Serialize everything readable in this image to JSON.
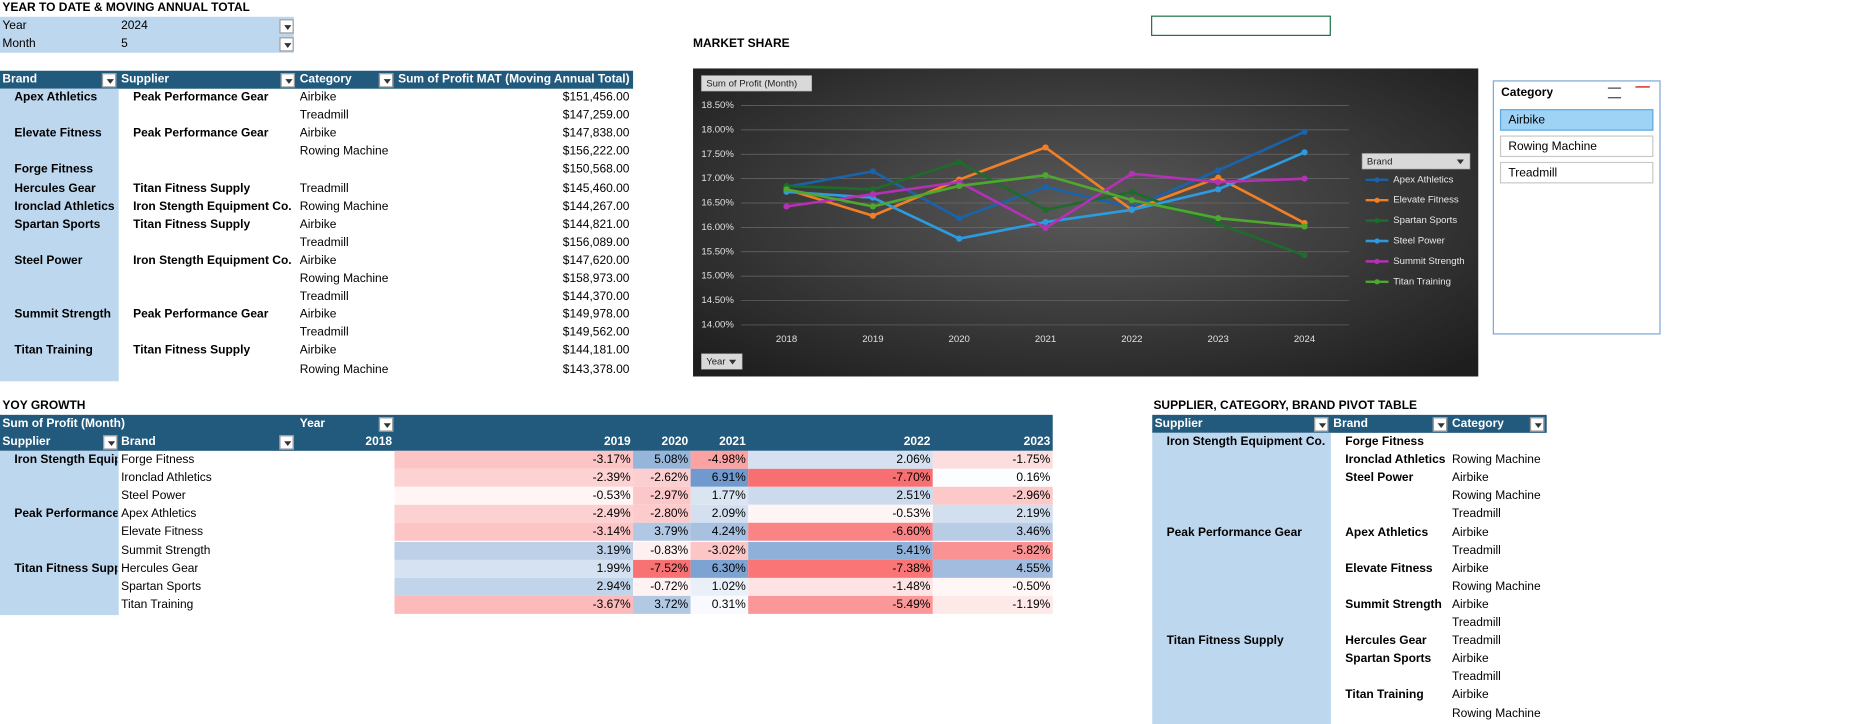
{
  "mat_table": {
    "title": "YEAR TO DATE & MOVING ANNUAL TOTAL",
    "filters": [
      {
        "label": "Year",
        "value": "2024"
      },
      {
        "label": "Month",
        "value": "5"
      }
    ],
    "headers": [
      "Brand",
      "Supplier",
      "Category",
      "Sum of Profit MAT (Moving Annual Total)"
    ],
    "rows": [
      {
        "brand": "Apex Athletics",
        "supplier": "Peak Performance Gear",
        "items": [
          {
            "category": "Airbike",
            "value": "$151,456.00"
          },
          {
            "category": "Treadmill",
            "value": "$147,259.00"
          }
        ]
      },
      {
        "brand": "Elevate Fitness",
        "supplier": "Peak Performance Gear",
        "items": [
          {
            "category": "Airbike",
            "value": "$147,838.00"
          },
          {
            "category": "Rowing Machine",
            "value": "$156,222.00"
          }
        ]
      },
      {
        "brand": "Forge Fitness",
        "items": [
          {
            "value": "$150,568.00"
          }
        ]
      },
      {
        "brand": "Hercules Gear",
        "supplier": "Titan Fitness Supply",
        "items": [
          {
            "category": "Treadmill",
            "value": "$145,460.00"
          }
        ]
      },
      {
        "brand": "Ironclad Athletics",
        "supplier": "Iron Stength Equipment Co.",
        "items": [
          {
            "category": "Rowing Machine",
            "value": "$144,267.00"
          }
        ]
      },
      {
        "brand": "Spartan Sports",
        "supplier": "Titan Fitness Supply",
        "items": [
          {
            "category": "Airbike",
            "value": "$144,821.00"
          },
          {
            "category": "Treadmill",
            "value": "$156,089.00"
          }
        ]
      },
      {
        "brand": "Steel Power",
        "supplier": "Iron Stength Equipment Co.",
        "items": [
          {
            "category": "Airbike",
            "value": "$147,620.00"
          },
          {
            "category": "Rowing Machine",
            "value": "$158,973.00"
          },
          {
            "category": "Treadmill",
            "value": "$144,370.00"
          }
        ]
      },
      {
        "brand": "Summit Strength",
        "supplier": "Peak Performance Gear",
        "items": [
          {
            "category": "Airbike",
            "value": "$149,978.00"
          },
          {
            "category": "Treadmill",
            "value": "$149,562.00"
          }
        ]
      },
      {
        "brand": "Titan Training",
        "supplier": "Titan Fitness Supply",
        "items": [
          {
            "category": "Airbike",
            "value": "$144,181.00"
          },
          {
            "category": "Rowing Machine",
            "value": "$143,378.00"
          }
        ]
      }
    ]
  },
  "chart_data": {
    "type": "line",
    "title": "MARKET SHARE",
    "value_button": "Sum of Profit (Month)",
    "axis_button": "Year",
    "legend_title": "Brand",
    "categories": [
      "2018",
      "2019",
      "2020",
      "2021",
      "2022",
      "2023",
      "2024"
    ],
    "ylim": [
      14,
      18.5
    ],
    "yticks": [
      {
        "value": 14,
        "label": "14.00%"
      },
      {
        "value": 14.5,
        "label": "14.50%"
      },
      {
        "value": 15,
        "label": "15.00%"
      },
      {
        "value": 15.5,
        "label": "15.50%"
      },
      {
        "value": 16,
        "label": "16.00%"
      },
      {
        "value": 16.5,
        "label": "16.50%"
      },
      {
        "value": 17,
        "label": "17.00%"
      },
      {
        "value": 17.5,
        "label": "17.50%"
      },
      {
        "value": 18,
        "label": "18.00%"
      },
      {
        "value": 18.5,
        "label": "18.50%"
      }
    ],
    "grid": true,
    "series": [
      {
        "name": "Apex Athletics",
        "color": "#1a63a8",
        "values": [
          16.83,
          17.15,
          16.19,
          16.83,
          16.41,
          17.17,
          17.96
        ]
      },
      {
        "name": "Elevate Fitness",
        "color": "#f07f26",
        "values": [
          16.78,
          16.24,
          16.98,
          17.64,
          16.36,
          17.02,
          16.09
        ]
      },
      {
        "name": "Spartan Sports",
        "color": "#1e6b2c",
        "values": [
          16.85,
          16.78,
          17.34,
          16.36,
          16.73,
          16.07,
          15.43
        ]
      },
      {
        "name": "Steel Power",
        "color": "#2c9be0",
        "values": [
          16.73,
          16.61,
          15.77,
          16.11,
          16.36,
          16.78,
          17.54
        ]
      },
      {
        "name": "Summit Strength",
        "color": "#b431b4",
        "values": [
          16.43,
          16.68,
          16.93,
          15.99,
          17.1,
          16.93,
          17.0
        ]
      },
      {
        "name": "Titan Training",
        "color": "#4ea72e",
        "values": [
          16.78,
          16.43,
          16.85,
          17.07,
          16.56,
          16.19,
          16.02
        ]
      }
    ]
  },
  "slicer": {
    "title": "Category",
    "items": [
      {
        "label": "Airbike",
        "selected": true
      },
      {
        "label": "Rowing Machine",
        "selected": false
      },
      {
        "label": "Treadmill",
        "selected": false
      }
    ]
  },
  "yoy": {
    "title": "YOY GROWTH",
    "corner_label": "Sum of Profit (Month)",
    "column_field": "Year",
    "headers": [
      "Supplier",
      "Brand"
    ],
    "years": [
      "2018",
      "2019",
      "2020",
      "2021",
      "2022",
      "2023"
    ],
    "groups": [
      {
        "supplier": "Iron Stength Equipment Co.",
        "rows": [
          {
            "brand": "Forge Fitness",
            "values": [
              "-3.17%",
              "5.08%",
              "-4.98%",
              "2.06%",
              "-1.75%"
            ]
          },
          {
            "brand": "Ironclad Athletics",
            "values": [
              "-2.39%",
              "-2.62%",
              "6.91%",
              "-7.70%",
              "0.16%"
            ]
          },
          {
            "brand": "Steel Power",
            "values": [
              "-0.53%",
              "-2.97%",
              "1.77%",
              "2.51%",
              "-2.96%"
            ]
          }
        ]
      },
      {
        "supplier": "Peak Performance Gear",
        "rows": [
          {
            "brand": "Apex Athletics",
            "values": [
              "-2.49%",
              "-2.80%",
              "2.09%",
              "-0.53%",
              "2.19%"
            ]
          },
          {
            "brand": "Elevate Fitness",
            "values": [
              "-3.14%",
              "3.79%",
              "4.24%",
              "-6.60%",
              "3.46%"
            ]
          },
          {
            "brand": "Summit Strength",
            "values": [
              "3.19%",
              "-0.83%",
              "-3.02%",
              "5.41%",
              "-5.82%"
            ]
          }
        ]
      },
      {
        "supplier": "Titan Fitness Supply",
        "rows": [
          {
            "brand": "Hercules Gear",
            "values": [
              "1.99%",
              "-7.52%",
              "6.30%",
              "-7.38%",
              "4.55%"
            ]
          },
          {
            "brand": "Spartan Sports",
            "values": [
              "2.94%",
              "-0.72%",
              "1.02%",
              "-1.48%",
              "-0.50%"
            ]
          },
          {
            "brand": "Titan Training",
            "values": [
              "-3.67%",
              "3.72%",
              "0.31%",
              "-5.49%",
              "-1.19%"
            ]
          }
        ]
      }
    ]
  },
  "supplier_table": {
    "title": "SUPPLIER, CATEGORY, BRAND PIVOT TABLE",
    "headers": [
      "Supplier",
      "Brand",
      "Category"
    ],
    "suppliers": [
      {
        "name": "Iron Stength Equipment Co.",
        "brands": [
          {
            "name": "Forge Fitness",
            "categories": []
          },
          {
            "name": "Ironclad Athletics",
            "categories": [
              "Rowing Machine"
            ]
          },
          {
            "name": "Steel Power",
            "categories": [
              "Airbike",
              "Rowing Machine",
              "Treadmill"
            ]
          }
        ]
      },
      {
        "name": "Peak Performance Gear",
        "brands": [
          {
            "name": "Apex Athletics",
            "categories": [
              "Airbike",
              "Treadmill"
            ]
          },
          {
            "name": "Elevate Fitness",
            "categories": [
              "Airbike",
              "Rowing Machine"
            ]
          },
          {
            "name": "Summit Strength",
            "categories": [
              "Airbike",
              "Treadmill"
            ]
          }
        ]
      },
      {
        "name": "Titan Fitness Supply",
        "brands": [
          {
            "name": "Hercules Gear",
            "categories": [
              "Treadmill"
            ]
          },
          {
            "name": "Spartan Sports",
            "categories": [
              "Airbike",
              "Treadmill"
            ]
          },
          {
            "name": "Titan Training",
            "categories": [
              "Airbike",
              "Rowing Machine"
            ]
          }
        ]
      }
    ]
  }
}
